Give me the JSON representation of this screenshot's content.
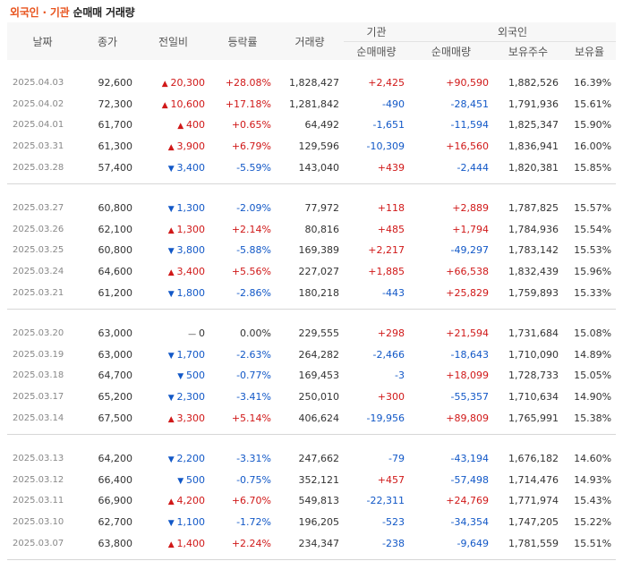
{
  "title": {
    "part1": "외국인 · 기관",
    "part2": " 순매매 거래량"
  },
  "headers": {
    "date": "날짜",
    "close": "종가",
    "change": "전일비",
    "rate": "등락률",
    "volume": "거래량",
    "inst_group": "기관",
    "inst_net": "순매매량",
    "foreign_group": "외국인",
    "foreign_net": "순매매량",
    "foreign_hold": "보유주수",
    "foreign_ratio": "보유율"
  },
  "colors": {
    "up": "#d01818",
    "down": "#1258c7",
    "accent": "#e8541e"
  },
  "groups": [
    [
      {
        "date": "2025.04.03",
        "close": "92,600",
        "dir": "up",
        "change": "20,300",
        "rate": "+28.08%",
        "volume": "1,828,427",
        "inst": "+2,425",
        "foreign": "+90,590",
        "hold": "1,882,526",
        "ratio": "16.39%"
      },
      {
        "date": "2025.04.02",
        "close": "72,300",
        "dir": "up",
        "change": "10,600",
        "rate": "+17.18%",
        "volume": "1,281,842",
        "inst": "-490",
        "foreign": "-28,451",
        "hold": "1,791,936",
        "ratio": "15.61%"
      },
      {
        "date": "2025.04.01",
        "close": "61,700",
        "dir": "up",
        "change": "400",
        "rate": "+0.65%",
        "volume": "64,492",
        "inst": "-1,651",
        "foreign": "-11,594",
        "hold": "1,825,347",
        "ratio": "15.90%"
      },
      {
        "date": "2025.03.31",
        "close": "61,300",
        "dir": "up",
        "change": "3,900",
        "rate": "+6.79%",
        "volume": "129,596",
        "inst": "-10,309",
        "foreign": "+16,560",
        "hold": "1,836,941",
        "ratio": "16.00%"
      },
      {
        "date": "2025.03.28",
        "close": "57,400",
        "dir": "down",
        "change": "3,400",
        "rate": "-5.59%",
        "volume": "143,040",
        "inst": "+439",
        "foreign": "-2,444",
        "hold": "1,820,381",
        "ratio": "15.85%"
      }
    ],
    [
      {
        "date": "2025.03.27",
        "close": "60,800",
        "dir": "down",
        "change": "1,300",
        "rate": "-2.09%",
        "volume": "77,972",
        "inst": "+118",
        "foreign": "+2,889",
        "hold": "1,787,825",
        "ratio": "15.57%"
      },
      {
        "date": "2025.03.26",
        "close": "62,100",
        "dir": "up",
        "change": "1,300",
        "rate": "+2.14%",
        "volume": "80,816",
        "inst": "+485",
        "foreign": "+1,794",
        "hold": "1,784,936",
        "ratio": "15.54%"
      },
      {
        "date": "2025.03.25",
        "close": "60,800",
        "dir": "down",
        "change": "3,800",
        "rate": "-5.88%",
        "volume": "169,389",
        "inst": "+2,217",
        "foreign": "-49,297",
        "hold": "1,783,142",
        "ratio": "15.53%"
      },
      {
        "date": "2025.03.24",
        "close": "64,600",
        "dir": "up",
        "change": "3,400",
        "rate": "+5.56%",
        "volume": "227,027",
        "inst": "+1,885",
        "foreign": "+66,538",
        "hold": "1,832,439",
        "ratio": "15.96%"
      },
      {
        "date": "2025.03.21",
        "close": "61,200",
        "dir": "down",
        "change": "1,800",
        "rate": "-2.86%",
        "volume": "180,218",
        "inst": "-443",
        "foreign": "+25,829",
        "hold": "1,759,893",
        "ratio": "15.33%"
      }
    ],
    [
      {
        "date": "2025.03.20",
        "close": "63,000",
        "dir": "flat",
        "change": "0",
        "rate": "0.00%",
        "volume": "229,555",
        "inst": "+298",
        "foreign": "+21,594",
        "hold": "1,731,684",
        "ratio": "15.08%"
      },
      {
        "date": "2025.03.19",
        "close": "63,000",
        "dir": "down",
        "change": "1,700",
        "rate": "-2.63%",
        "volume": "264,282",
        "inst": "-2,466",
        "foreign": "-18,643",
        "hold": "1,710,090",
        "ratio": "14.89%"
      },
      {
        "date": "2025.03.18",
        "close": "64,700",
        "dir": "down",
        "change": "500",
        "rate": "-0.77%",
        "volume": "169,453",
        "inst": "-3",
        "foreign": "+18,099",
        "hold": "1,728,733",
        "ratio": "15.05%"
      },
      {
        "date": "2025.03.17",
        "close": "65,200",
        "dir": "down",
        "change": "2,300",
        "rate": "-3.41%",
        "volume": "250,010",
        "inst": "+300",
        "foreign": "-55,357",
        "hold": "1,710,634",
        "ratio": "14.90%"
      },
      {
        "date": "2025.03.14",
        "close": "67,500",
        "dir": "up",
        "change": "3,300",
        "rate": "+5.14%",
        "volume": "406,624",
        "inst": "-19,956",
        "foreign": "+89,809",
        "hold": "1,765,991",
        "ratio": "15.38%"
      }
    ],
    [
      {
        "date": "2025.03.13",
        "close": "64,200",
        "dir": "down",
        "change": "2,200",
        "rate": "-3.31%",
        "volume": "247,662",
        "inst": "-79",
        "foreign": "-43,194",
        "hold": "1,676,182",
        "ratio": "14.60%"
      },
      {
        "date": "2025.03.12",
        "close": "66,400",
        "dir": "down",
        "change": "500",
        "rate": "-0.75%",
        "volume": "352,121",
        "inst": "+457",
        "foreign": "-57,498",
        "hold": "1,714,476",
        "ratio": "14.93%"
      },
      {
        "date": "2025.03.11",
        "close": "66,900",
        "dir": "up",
        "change": "4,200",
        "rate": "+6.70%",
        "volume": "549,813",
        "inst": "-22,311",
        "foreign": "+24,769",
        "hold": "1,771,974",
        "ratio": "15.43%"
      },
      {
        "date": "2025.03.10",
        "close": "62,700",
        "dir": "down",
        "change": "1,100",
        "rate": "-1.72%",
        "volume": "196,205",
        "inst": "-523",
        "foreign": "-34,354",
        "hold": "1,747,205",
        "ratio": "15.22%"
      },
      {
        "date": "2025.03.07",
        "close": "63,800",
        "dir": "up",
        "change": "1,400",
        "rate": "+2.24%",
        "volume": "234,347",
        "inst": "-238",
        "foreign": "-9,649",
        "hold": "1,781,559",
        "ratio": "15.51%"
      }
    ]
  ]
}
